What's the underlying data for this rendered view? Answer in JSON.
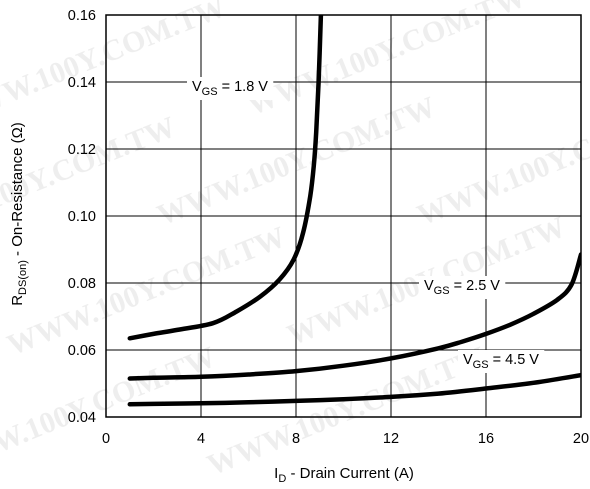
{
  "chart_data": {
    "type": "line",
    "title": "",
    "xlabel": {
      "main": "I",
      "sub": "D",
      "rest": " - Drain Current (A)"
    },
    "ylabel": {
      "main": "R",
      "sub": "DS(on)",
      "rest": " - On-Resistance (Ω)"
    },
    "xlim": [
      0,
      20
    ],
    "ylim": [
      0.04,
      0.16
    ],
    "xticks": [
      0,
      4,
      8,
      12,
      16,
      20
    ],
    "xtick_labels": [
      "0",
      "4",
      "8",
      "12",
      "16",
      "20"
    ],
    "yticks": [
      0.04,
      0.06,
      0.08,
      0.1,
      0.12,
      0.14,
      0.16
    ],
    "ytick_labels": [
      "0.04",
      "0.06",
      "0.08",
      "0.10",
      "0.12",
      "0.14",
      "0.16"
    ],
    "grid": true,
    "series": [
      {
        "name": "VGS = 1.8 V",
        "label": {
          "main": "V",
          "sub": "GS",
          "rest": " = 1.8 V"
        },
        "x": [
          1.0,
          2.0,
          3.0,
          4.5,
          5.5,
          6.5,
          7.3,
          7.9,
          8.3,
          8.6,
          8.75,
          8.85,
          8.95,
          9.05
        ],
        "y": [
          0.0635,
          0.0648,
          0.066,
          0.068,
          0.0715,
          0.076,
          0.081,
          0.087,
          0.095,
          0.106,
          0.115,
          0.125,
          0.14,
          0.16
        ]
      },
      {
        "name": "VGS = 2.5 V",
        "label": {
          "main": "V",
          "sub": "GS",
          "rest": " = 2.5 V"
        },
        "x": [
          1,
          2,
          4,
          6,
          8,
          10,
          12,
          14,
          15,
          16,
          17,
          18,
          19,
          19.6,
          20
        ],
        "y": [
          0.0515,
          0.0517,
          0.052,
          0.0527,
          0.0537,
          0.0553,
          0.0575,
          0.0605,
          0.0625,
          0.0648,
          0.0675,
          0.0708,
          0.075,
          0.0795,
          0.0885
        ]
      },
      {
        "name": "VGS = 4.5 V",
        "label": {
          "main": "V",
          "sub": "GS",
          "rest": " = 4.5 V"
        },
        "x": [
          1,
          2,
          4,
          6,
          8,
          10,
          12,
          14,
          16,
          18,
          20
        ],
        "y": [
          0.0438,
          0.0439,
          0.0441,
          0.0444,
          0.0448,
          0.0453,
          0.046,
          0.047,
          0.0485,
          0.0502,
          0.0525
        ]
      }
    ],
    "watermark": "WWW.100Y.COM.TW"
  }
}
